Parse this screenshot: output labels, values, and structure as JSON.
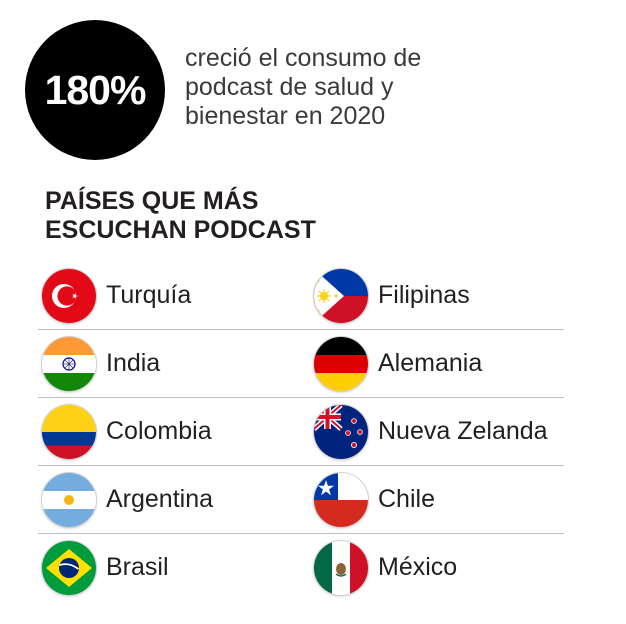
{
  "stat": {
    "value": "180%",
    "description": "creció el consumo de\npodcast de salud y\nbienestar en 2020",
    "circle_color": "#000000"
  },
  "section_title": "PAÍSES QUE MÁS\nESCUCHAN PODCAST",
  "countries": [
    {
      "name": "Turquía",
      "flag_icon": "turkey-flag-icon"
    },
    {
      "name": "Filipinas",
      "flag_icon": "philippines-flag-icon"
    },
    {
      "name": "India",
      "flag_icon": "india-flag-icon"
    },
    {
      "name": "Alemania",
      "flag_icon": "germany-flag-icon"
    },
    {
      "name": "Colombia",
      "flag_icon": "colombia-flag-icon"
    },
    {
      "name": "Nueva Zelanda",
      "flag_icon": "new-zealand-flag-icon"
    },
    {
      "name": "Argentina",
      "flag_icon": "argentina-flag-icon"
    },
    {
      "name": "Chile",
      "flag_icon": "chile-flag-icon"
    },
    {
      "name": "Brasil",
      "flag_icon": "brazil-flag-icon"
    },
    {
      "name": "México",
      "flag_icon": "mexico-flag-icon"
    }
  ]
}
